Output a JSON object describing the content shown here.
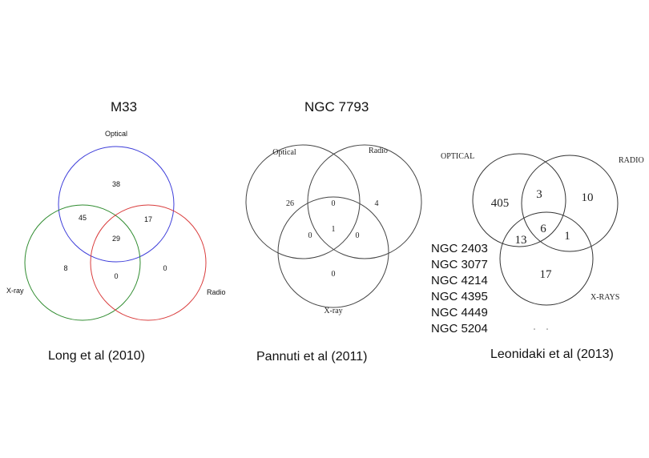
{
  "panels": [
    {
      "title": "M33",
      "caption": "Long et al (2010)",
      "labels": {
        "optical": "Optical",
        "xray": "X-ray",
        "radio": "Radio"
      },
      "regions": {
        "optical_only": "38",
        "optical_xray": "45",
        "optical_radio": "17",
        "all_three": "29",
        "xray_only": "8",
        "xray_radio": "0",
        "radio_only": "0"
      },
      "colors": {
        "optical": "#3b3bd9",
        "xray": "#2e8b2e",
        "radio": "#d93b3b"
      }
    },
    {
      "title": "NGC 7793",
      "caption": "Pannuti et al (2011)",
      "labels": {
        "optical": "Optical",
        "radio": "Radio",
        "xray": "X-ray"
      },
      "regions": {
        "optical_only": "26",
        "optical_radio": "0",
        "radio_only": "4",
        "optical_xray": "0",
        "all_three": "1",
        "radio_xray": "0",
        "xray_only": "0"
      }
    },
    {
      "caption": "Leonidaki et al (2013)",
      "labels": {
        "optical": "OPTICAL",
        "radio": "RADIO",
        "xray": "X-RAYS"
      },
      "regions": {
        "optical_only": "405",
        "optical_radio": "3",
        "radio_only": "10",
        "optical_xray": "13",
        "all_three": "6",
        "radio_xray": "1",
        "xray_only": "17"
      },
      "galaxies": [
        "NGC 2403",
        "NGC 3077",
        "NGC 4214",
        "NGC 4395",
        "NGC 4449",
        "NGC 5204"
      ]
    }
  ]
}
